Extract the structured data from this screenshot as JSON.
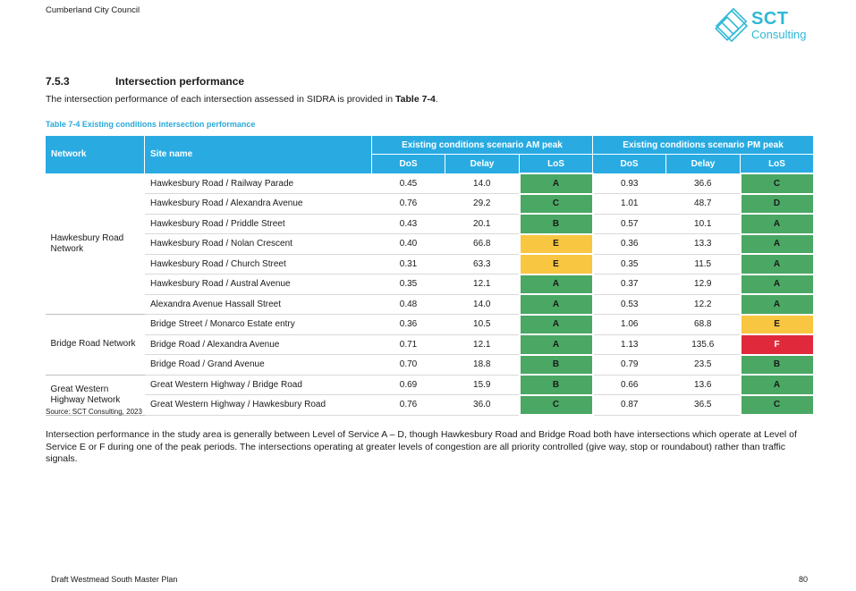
{
  "header": {
    "organisation": "Cumberland City Council"
  },
  "logo": {
    "brand": "SCT",
    "sub": "Consulting",
    "color": "#2fb8d6"
  },
  "section": {
    "number": "7.5.3",
    "title": "Intersection performance"
  },
  "intro": {
    "text_before": "The intersection performance of each intersection assessed in SIDRA is provided in ",
    "table_ref": "Table 7-4",
    "text_after": "."
  },
  "table": {
    "caption": "Table 7-4 Existing conditions intersection performance",
    "header_color": "#29abe2",
    "headers": {
      "network": "Network",
      "site": "Site name",
      "am": "Existing conditions scenario AM peak",
      "pm": "Existing conditions scenario PM peak",
      "dos": "DoS",
      "delay": "Delay",
      "los": "LoS"
    },
    "los_colors": {
      "A": "#4aa864",
      "B": "#4aa864",
      "C": "#4aa864",
      "D": "#4aa864",
      "E": "#f8c640",
      "F": "#e02a3b"
    },
    "groups": [
      {
        "network": "Hawkesbury Road Network",
        "rows": [
          {
            "site": "Hawkesbury Road / Railway Parade",
            "am_dos": "0.45",
            "am_delay": "14.0",
            "am_los": "A",
            "pm_dos": "0.93",
            "pm_delay": "36.6",
            "pm_los": "C"
          },
          {
            "site": "Hawkesbury Road / Alexandra Avenue",
            "am_dos": "0.76",
            "am_delay": "29.2",
            "am_los": "C",
            "pm_dos": "1.01",
            "pm_delay": "48.7",
            "pm_los": "D"
          },
          {
            "site": "Hawkesbury Road / Priddle Street",
            "am_dos": "0.43",
            "am_delay": "20.1",
            "am_los": "B",
            "pm_dos": "0.57",
            "pm_delay": "10.1",
            "pm_los": "A"
          },
          {
            "site": "Hawkesbury Road / Nolan Crescent",
            "am_dos": "0.40",
            "am_delay": "66.8",
            "am_los": "E",
            "pm_dos": "0.36",
            "pm_delay": "13.3",
            "pm_los": "A"
          },
          {
            "site": "Hawkesbury Road / Church Street",
            "am_dos": "0.31",
            "am_delay": "63.3",
            "am_los": "E",
            "pm_dos": "0.35",
            "pm_delay": "11.5",
            "pm_los": "A"
          },
          {
            "site": "Hawkesbury Road / Austral Avenue",
            "am_dos": "0.35",
            "am_delay": "12.1",
            "am_los": "A",
            "pm_dos": "0.37",
            "pm_delay": "12.9",
            "pm_los": "A"
          },
          {
            "site": "Alexandra Avenue Hassall Street",
            "am_dos": "0.48",
            "am_delay": "14.0",
            "am_los": "A",
            "pm_dos": "0.53",
            "pm_delay": "12.2",
            "pm_los": "A"
          }
        ]
      },
      {
        "network": "Bridge Road Network",
        "rows": [
          {
            "site": "Bridge Street / Monarco Estate entry",
            "am_dos": "0.36",
            "am_delay": "10.5",
            "am_los": "A",
            "pm_dos": "1.06",
            "pm_delay": "68.8",
            "pm_los": "E"
          },
          {
            "site": "Bridge Road / Alexandra Avenue",
            "am_dos": "0.71",
            "am_delay": "12.1",
            "am_los": "A",
            "pm_dos": "1.13",
            "pm_delay": "135.6",
            "pm_los": "F"
          },
          {
            "site": "Bridge Road / Grand Avenue",
            "am_dos": "0.70",
            "am_delay": "18.8",
            "am_los": "B",
            "pm_dos": "0.79",
            "pm_delay": "23.5",
            "pm_los": "B"
          }
        ]
      },
      {
        "network": "Great Western Highway Network",
        "rows": [
          {
            "site": "Great Western Highway / Bridge Road",
            "am_dos": "0.69",
            "am_delay": "15.9",
            "am_los": "B",
            "pm_dos": "0.66",
            "pm_delay": "13.6",
            "pm_los": "A"
          },
          {
            "site": "Great Western Highway / Hawkesbury Road",
            "am_dos": "0.76",
            "am_delay": "36.0",
            "am_los": "C",
            "pm_dos": "0.87",
            "pm_delay": "36.5",
            "pm_los": "C"
          }
        ]
      }
    ]
  },
  "source": "Source: SCT Consulting, 2023",
  "paragraph": "Intersection performance in the study area is generally between Level of Service A – D, though Hawkesbury Road and Bridge Road both have intersections which operate at Level of Service E or F during one of the peak periods. The intersections operating at greater levels of congestion are all priority controlled (give way, stop or roundabout) rather than traffic signals.",
  "footer": {
    "title": "Draft Westmead South Master Plan",
    "page": "80"
  }
}
